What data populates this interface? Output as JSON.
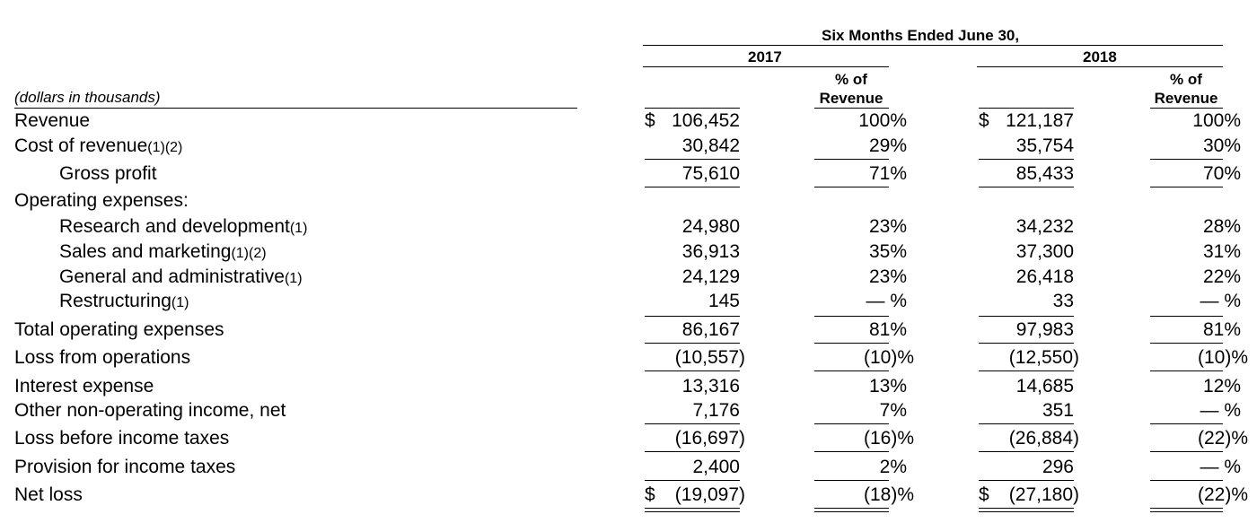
{
  "header": {
    "period": "Six Months Ended June 30,",
    "year_2017": "2017",
    "year_2018": "2018",
    "pct_of_line1": "% of",
    "pct_of_line2": "Revenue",
    "units": "(dollars in thousands)"
  },
  "rows": [
    {
      "label": "Revenue",
      "note": "",
      "v2017": "106,452",
      "p2017": "100%",
      "v2018": "121,187",
      "p2018": "100%",
      "cur": "$"
    },
    {
      "label": "Cost of revenue",
      "note": "(1)(2)",
      "v2017": "30,842",
      "p2017": "29%",
      "v2018": "35,754",
      "p2018": "30%"
    },
    {
      "label": "Gross profit",
      "note": "",
      "v2017": "75,610",
      "p2017": "71%",
      "v2018": "85,433",
      "p2018": "70%"
    },
    {
      "label": "Operating expenses:",
      "note": "",
      "v2017": "",
      "p2017": "",
      "v2018": "",
      "p2018": ""
    },
    {
      "label": "Research and development",
      "note": "(1)",
      "v2017": "24,980",
      "p2017": "23%",
      "v2018": "34,232",
      "p2018": "28%"
    },
    {
      "label": "Sales and marketing",
      "note": "(1)(2)",
      "v2017": "36,913",
      "p2017": "35%",
      "v2018": "37,300",
      "p2018": "31%"
    },
    {
      "label": "General and administrative",
      "note": "(1)",
      "v2017": "24,129",
      "p2017": "23%",
      "v2018": "26,418",
      "p2018": "22%"
    },
    {
      "label": "Restructuring",
      "note": "(1)",
      "v2017": "145",
      "p2017": "— %",
      "v2018": "33",
      "p2018": "— %"
    },
    {
      "label": "Total operating expenses",
      "note": "",
      "v2017": "86,167",
      "p2017": "81%",
      "v2018": "97,983",
      "p2018": "81%"
    },
    {
      "label": "Loss from operations",
      "note": "",
      "v2017": "(10,557)",
      "p2017": "(10)%",
      "v2018": "(12,550)",
      "p2018": "(10)%"
    },
    {
      "label": "Interest expense",
      "note": "",
      "v2017": "13,316",
      "p2017": "13%",
      "v2018": "14,685",
      "p2018": "12%"
    },
    {
      "label": "Other non-operating income, net",
      "note": "",
      "v2017": "7,176",
      "p2017": "7%",
      "v2018": "351",
      "p2018": "— %"
    },
    {
      "label": "Loss before income taxes",
      "note": "",
      "v2017": "(16,697)",
      "p2017": "(16)%",
      "v2018": "(26,884)",
      "p2018": "(22)%"
    },
    {
      "label": "Provision for income taxes",
      "note": "",
      "v2017": "2,400",
      "p2017": "2%",
      "v2018": "296",
      "p2018": "— %"
    },
    {
      "label": "Net loss",
      "note": "",
      "v2017": "(19,097)",
      "p2017": "(18)%",
      "v2018": "(27,180)",
      "p2018": "(22)%",
      "cur": "$"
    }
  ]
}
